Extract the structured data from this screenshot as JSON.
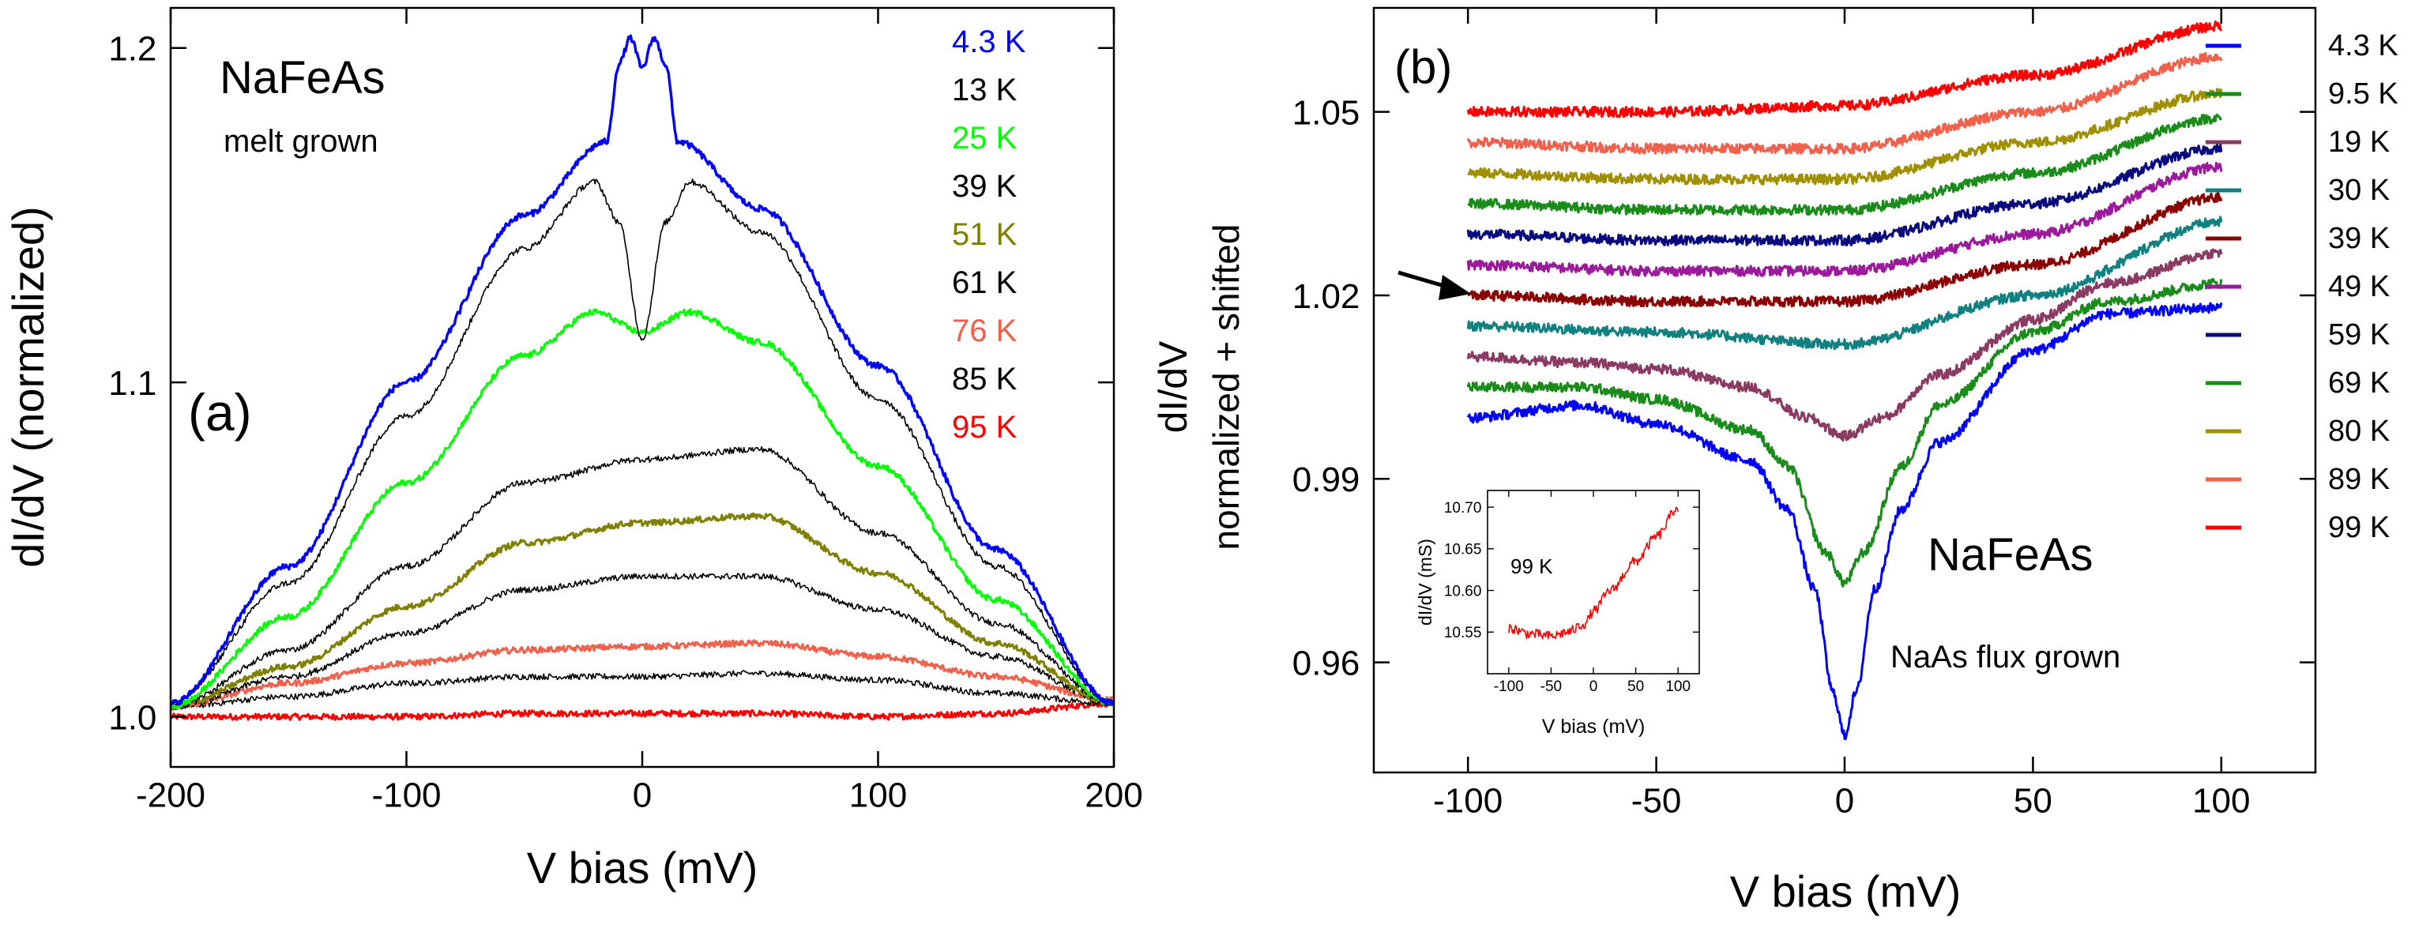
{
  "chart_data": [
    {
      "type": "line",
      "panel_label": "(a)",
      "title": "NaFeAs",
      "subtitle": "melt grown",
      "xlabel": "V bias (mV)",
      "ylabel": "dI/dV (normalized)",
      "xlim": [
        -200,
        200
      ],
      "ylim": [
        0.985,
        1.212
      ],
      "xticks": [
        -200,
        -100,
        0,
        100,
        200
      ],
      "xtick_labels": [
        "-200",
        "-100",
        "0",
        "100",
        "200"
      ],
      "yticks": [
        1.0,
        1.1,
        1.2
      ],
      "ytick_labels": [
        "1.0",
        "1.1",
        "1.2"
      ],
      "legend_position": "top-right",
      "series": [
        {
          "name": "95 K",
          "color": "#ff0000",
          "x": [
            -200,
            -150,
            -100,
            -50,
            0,
            50,
            100,
            150,
            200
          ],
          "y": [
            1.0,
            1.0,
            1.0,
            1.001,
            1.001,
            1.001,
            1.0,
            1.001,
            1.004
          ]
        },
        {
          "name": "85 K",
          "color": "#000000",
          "x": [
            -200,
            -150,
            -100,
            -50,
            0,
            50,
            100,
            150,
            200
          ],
          "y": [
            1.003,
            1.006,
            1.01,
            1.012,
            1.012,
            1.013,
            1.011,
            1.007,
            1.004
          ]
        },
        {
          "name": "76 K",
          "color": "#f0604a",
          "x": [
            -200,
            -150,
            -100,
            -50,
            0,
            50,
            100,
            150,
            200
          ],
          "y": [
            1.003,
            1.01,
            1.016,
            1.02,
            1.021,
            1.022,
            1.018,
            1.012,
            1.005
          ]
        },
        {
          "name": "61 K",
          "color": "#000000",
          "x": [
            -200,
            -150,
            -100,
            -50,
            0,
            50,
            100,
            150,
            200
          ],
          "y": [
            1.003,
            1.012,
            1.025,
            1.038,
            1.042,
            1.042,
            1.032,
            1.018,
            1.004
          ]
        },
        {
          "name": "51 K",
          "color": "#808000",
          "x": [
            -200,
            -150,
            -100,
            -50,
            0,
            50,
            100,
            150,
            200
          ],
          "y": [
            1.003,
            1.015,
            1.033,
            1.052,
            1.058,
            1.06,
            1.043,
            1.022,
            1.004
          ]
        },
        {
          "name": "39 K",
          "color": "#000000",
          "x": [
            -200,
            -150,
            -100,
            -50,
            0,
            50,
            100,
            150,
            200
          ],
          "y": [
            1.003,
            1.02,
            1.045,
            1.07,
            1.077,
            1.08,
            1.055,
            1.028,
            1.004
          ]
        },
        {
          "name": "25 K",
          "color": "#00ff00",
          "x": [
            -200,
            -150,
            -100,
            -50,
            -20,
            0,
            20,
            50,
            100,
            150,
            200
          ],
          "y": [
            1.003,
            1.03,
            1.07,
            1.108,
            1.121,
            1.115,
            1.121,
            1.112,
            1.075,
            1.035,
            1.004
          ]
        },
        {
          "name": "13 K",
          "color": "#000000",
          "x": [
            -200,
            -150,
            -100,
            -50,
            -20,
            -10,
            0,
            10,
            20,
            50,
            100,
            150,
            200
          ],
          "y": [
            1.004,
            1.04,
            1.09,
            1.14,
            1.16,
            1.148,
            1.113,
            1.148,
            1.16,
            1.145,
            1.095,
            1.045,
            1.004
          ]
        },
        {
          "name": "4.3 K",
          "color": "#0000ff",
          "x": [
            -200,
            -150,
            -100,
            -50,
            -15,
            -10,
            -5,
            0,
            5,
            10,
            15,
            50,
            100,
            150,
            200
          ],
          "y": [
            1.004,
            1.045,
            1.1,
            1.15,
            1.172,
            1.195,
            1.203,
            1.194,
            1.203,
            1.195,
            1.172,
            1.152,
            1.105,
            1.05,
            1.004
          ]
        }
      ]
    },
    {
      "type": "line",
      "panel_label": "(b)",
      "title": "NaFeAs",
      "subtitle": "NaAs flux grown",
      "xlabel": "V bias (mV)",
      "ylabel": "dI/dV",
      "ylabel2": "normalized + shifted",
      "xlim": [
        -125,
        125
      ],
      "ylim": [
        0.942,
        1.067
      ],
      "xticks": [
        -100,
        -50,
        0,
        50,
        100
      ],
      "xtick_labels": [
        "-100",
        "-50",
        "0",
        "50",
        "100"
      ],
      "yticks": [
        0.96,
        0.99,
        1.02,
        1.05
      ],
      "ytick_labels": [
        "0.96",
        "0.99",
        "1.02",
        "1.05"
      ],
      "legend_position": "right",
      "annotation": "arrow pointing to 39 K curve at V bias = -100 mV",
      "series": [
        {
          "name": "99 K",
          "color": "#ff0000",
          "x": [
            -100,
            -50,
            0,
            50,
            100
          ],
          "y": [
            1.05,
            1.05,
            1.051,
            1.056,
            1.064
          ]
        },
        {
          "name": "89 K",
          "color": "#f0604a",
          "x": [
            -100,
            -50,
            0,
            50,
            100
          ],
          "y": [
            1.045,
            1.044,
            1.044,
            1.05,
            1.059
          ]
        },
        {
          "name": "80 K",
          "color": "#a09000",
          "x": [
            -100,
            -50,
            0,
            50,
            100
          ],
          "y": [
            1.04,
            1.039,
            1.039,
            1.045,
            1.053
          ]
        },
        {
          "name": "69 K",
          "color": "#1a8c1a",
          "x": [
            -100,
            -50,
            0,
            50,
            100
          ],
          "y": [
            1.035,
            1.034,
            1.034,
            1.04,
            1.049
          ]
        },
        {
          "name": "59 K",
          "color": "#0a0a80",
          "x": [
            -100,
            -50,
            0,
            50,
            100
          ],
          "y": [
            1.03,
            1.029,
            1.029,
            1.035,
            1.044
          ]
        },
        {
          "name": "49 K",
          "color": "#9b1a9b",
          "x": [
            -100,
            -50,
            0,
            50,
            100
          ],
          "y": [
            1.025,
            1.024,
            1.024,
            1.03,
            1.041
          ]
        },
        {
          "name": "39 K",
          "color": "#8b0000",
          "x": [
            -100,
            -50,
            0,
            50,
            100
          ],
          "y": [
            1.02,
            1.019,
            1.019,
            1.025,
            1.036
          ]
        },
        {
          "name": "30 K",
          "color": "#108080",
          "x": [
            -100,
            -50,
            0,
            50,
            100
          ],
          "y": [
            1.015,
            1.014,
            1.012,
            1.02,
            1.032
          ]
        },
        {
          "name": "19 K",
          "color": "#8b3a62",
          "x": [
            -100,
            -70,
            -50,
            -25,
            -10,
            0,
            10,
            25,
            50,
            70,
            100
          ],
          "y": [
            1.01,
            1.009,
            1.008,
            1.005,
            1.0,
            0.997,
            1.0,
            1.007,
            1.016,
            1.022,
            1.027
          ]
        },
        {
          "name": "9.5 K",
          "color": "#1a8c1a",
          "x": [
            -100,
            -70,
            -50,
            -25,
            -15,
            -5,
            0,
            5,
            15,
            25,
            50,
            70,
            100
          ],
          "y": [
            1.005,
            1.005,
            1.003,
            0.998,
            0.992,
            0.978,
            0.973,
            0.978,
            0.992,
            1.002,
            1.014,
            1.019,
            1.022
          ]
        },
        {
          "name": "4.3 K",
          "color": "#0000ff",
          "x": [
            -100,
            -70,
            -50,
            -25,
            -15,
            -8,
            -3,
            0,
            3,
            8,
            15,
            25,
            50,
            70,
            100
          ],
          "y": [
            1.0,
            1.002,
            0.999,
            0.993,
            0.985,
            0.972,
            0.955,
            0.948,
            0.955,
            0.972,
            0.985,
            0.996,
            1.011,
            1.017,
            1.018
          ]
        }
      ]
    },
    {
      "type": "line",
      "panel_label": "inset",
      "title": "99 K",
      "xlabel": "V bias (mV)",
      "ylabel": "dI/dV (mS)",
      "xlim": [
        -125,
        125
      ],
      "ylim": [
        10.5,
        10.72
      ],
      "xticks": [
        -100,
        -50,
        0,
        50,
        100
      ],
      "xtick_labels": [
        "-100",
        "-50",
        "0",
        "50",
        "100"
      ],
      "yticks": [
        10.55,
        10.6,
        10.65,
        10.7
      ],
      "ytick_labels": [
        "10.55",
        "10.60",
        "10.65",
        "10.70"
      ],
      "series": [
        {
          "name": "99 K",
          "color": "#ff0000",
          "x": [
            -100,
            -75,
            -50,
            -30,
            -10,
            0,
            20,
            50,
            75,
            100
          ],
          "y": [
            10.555,
            10.548,
            10.545,
            10.55,
            10.56,
            10.575,
            10.6,
            10.635,
            10.665,
            10.7
          ]
        }
      ]
    }
  ]
}
